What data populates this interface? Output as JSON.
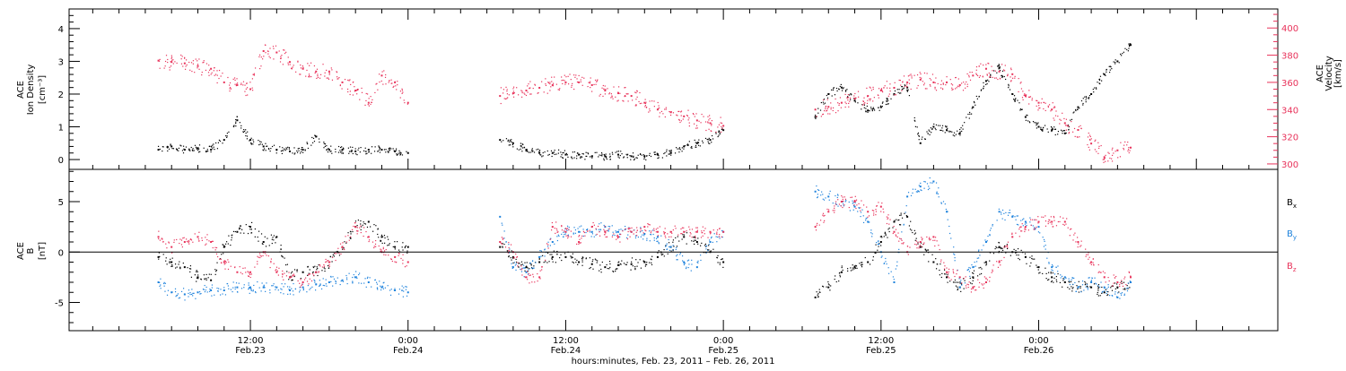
{
  "chart_data": [
    {
      "panel": "ion-density-velocity",
      "type": "scatter",
      "left_axis_label_lines": [
        "ACE",
        "Ion Density",
        "[cm⁻³]"
      ],
      "right_axis_label_lines": [
        "ACE",
        "Velocity",
        "[km/s]"
      ],
      "left_ylim": [
        -0.3,
        4.6
      ],
      "right_ylim": [
        296,
        414
      ],
      "left_ticks": [
        0,
        1,
        2,
        3,
        4
      ],
      "right_ticks": [
        300,
        320,
        340,
        360,
        380,
        400
      ],
      "colors": {
        "density": "#000000",
        "velocity": "#e8325a"
      },
      "data_gaps_hours": [
        [
          24.2,
          31.0
        ],
        [
          48.0,
          54.7
        ]
      ],
      "series": [
        {
          "key": "density",
          "color": "#000000",
          "x": [
            5,
            6,
            7,
            8,
            9,
            10,
            11,
            12,
            13,
            14,
            15,
            16,
            17,
            18,
            19,
            20,
            21,
            22,
            23,
            24,
            31,
            32,
            33,
            34,
            35,
            36,
            37,
            38,
            39,
            40,
            41,
            42,
            43,
            44,
            45,
            46,
            47,
            48,
            55,
            56,
            57,
            58,
            59,
            60,
            61,
            62,
            63,
            64,
            65,
            66,
            67,
            68,
            69,
            70,
            71,
            72,
            73,
            74,
            75,
            76,
            77,
            78,
            79
          ],
          "y": [
            0.3,
            0.4,
            0.3,
            0.35,
            0.3,
            0.6,
            1.2,
            0.6,
            0.4,
            0.3,
            0.25,
            0.3,
            0.7,
            0.3,
            0.3,
            0.25,
            0.3,
            0.3,
            0.25,
            0.2,
            0.6,
            0.5,
            0.3,
            0.2,
            0.2,
            0.15,
            0.15,
            0.1,
            0.1,
            0.15,
            0.1,
            0.1,
            0.15,
            0.2,
            0.4,
            0.5,
            0.6,
            0.9,
            1.3,
            2.0,
            2.2,
            1.8,
            1.5,
            1.6,
            2.0,
            2.2,
            0.5,
            1.0,
            0.9,
            0.8,
            1.6,
            2.4,
            2.8,
            2.0,
            1.3,
            1.0,
            0.9,
            0.8,
            1.6,
            2.0,
            2.6,
            3.0,
            3.5
          ]
        },
        {
          "key": "velocity",
          "color": "#e8325a",
          "x": [
            5,
            6,
            7,
            8,
            9,
            10,
            11,
            12,
            13,
            14,
            15,
            16,
            17,
            18,
            19,
            20,
            21,
            22,
            23,
            24,
            31,
            32,
            33,
            34,
            35,
            36,
            37,
            38,
            39,
            40,
            41,
            42,
            43,
            44,
            45,
            46,
            47,
            48,
            55,
            56,
            57,
            58,
            59,
            60,
            61,
            62,
            63,
            64,
            65,
            66,
            67,
            68,
            69,
            70,
            71,
            72,
            73,
            74,
            75,
            76,
            77,
            78,
            79
          ],
          "y": [
            376,
            375,
            374,
            372,
            370,
            360,
            358,
            355,
            383,
            382,
            375,
            370,
            368,
            368,
            360,
            354,
            345,
            365,
            360,
            345,
            350,
            352,
            354,
            356,
            358,
            360,
            360,
            358,
            354,
            352,
            350,
            345,
            340,
            338,
            335,
            332,
            330,
            328,
            340,
            342,
            345,
            348,
            350,
            354,
            356,
            360,
            362,
            360,
            360,
            358,
            365,
            370,
            368,
            366,
            350,
            345,
            340,
            330,
            325,
            315,
            305,
            310,
            312
          ]
        }
      ]
    },
    {
      "panel": "magnetic-field",
      "type": "scatter",
      "left_axis_label_lines": [
        "ACE",
        "B",
        "[nT]"
      ],
      "ylim": [
        -7.8,
        8.2
      ],
      "yticks": [
        -5,
        0,
        5
      ],
      "zero_line": true,
      "legend": [
        "Bx",
        "By",
        "Bz"
      ],
      "colors": {
        "bx": "#000000",
        "by": "#1e82dc",
        "bz": "#e8325a"
      },
      "series": [
        {
          "key": "bx",
          "color": "#000000",
          "x": [
            5,
            6,
            7,
            8,
            9,
            10,
            11,
            12,
            13,
            14,
            15,
            16,
            17,
            18,
            19,
            20,
            21,
            22,
            23,
            24,
            31,
            32,
            33,
            34,
            35,
            36,
            37,
            38,
            39,
            40,
            41,
            42,
            43,
            44,
            45,
            46,
            47,
            48,
            55,
            56,
            57,
            58,
            59,
            60,
            61,
            62,
            63,
            64,
            65,
            66,
            67,
            68,
            69,
            70,
            71,
            72,
            73,
            74,
            75,
            76,
            77,
            78,
            79
          ],
          "y": [
            -0.5,
            -1.0,
            -1.5,
            -2.5,
            -2.8,
            0.5,
            2.0,
            2.5,
            1.0,
            1.5,
            -2.5,
            -2.0,
            -2.0,
            -1.0,
            0.5,
            2.5,
            3.0,
            1.5,
            0.5,
            0.5,
            0.5,
            -0.5,
            -1.5,
            -1.0,
            -0.5,
            -0.5,
            -1.0,
            -1.2,
            -1.5,
            -1.3,
            -1.2,
            -1.0,
            -0.5,
            0.5,
            1.5,
            1.0,
            0.0,
            -1.0,
            -4.5,
            -3.5,
            -2.0,
            -1.5,
            -1.0,
            1.0,
            3.0,
            3.5,
            0.5,
            -1.0,
            -2.5,
            -3.5,
            -2.5,
            -1.0,
            0.5,
            0.0,
            -0.5,
            -1.5,
            -2.5,
            -3.0,
            -3.5,
            -3.5,
            -4.0,
            -3.5,
            -3.0
          ]
        },
        {
          "key": "by",
          "color": "#1e82dc",
          "x": [
            5,
            6,
            7,
            8,
            9,
            10,
            11,
            12,
            13,
            14,
            15,
            16,
            17,
            18,
            19,
            20,
            21,
            22,
            23,
            24,
            31,
            32,
            33,
            34,
            35,
            36,
            37,
            38,
            39,
            40,
            41,
            42,
            43,
            44,
            45,
            46,
            47,
            48,
            55,
            56,
            57,
            58,
            59,
            60,
            61,
            62,
            63,
            64,
            65,
            66,
            67,
            68,
            69,
            70,
            71,
            72,
            73,
            74,
            75,
            76,
            77,
            78,
            79
          ],
          "y": [
            -3.0,
            -4.0,
            -4.2,
            -4.0,
            -3.8,
            -3.8,
            -3.5,
            -3.5,
            -3.5,
            -3.5,
            -3.8,
            -3.5,
            -3.2,
            -3.0,
            -2.8,
            -2.5,
            -3.0,
            -3.5,
            -3.8,
            -4.0,
            3.5,
            -1.5,
            -2.0,
            -0.5,
            1.0,
            2.0,
            2.0,
            2.0,
            2.5,
            2.0,
            2.0,
            1.8,
            1.5,
            0.5,
            -1.0,
            -1.5,
            1.0,
            2.0,
            6.0,
            5.5,
            5.0,
            4.5,
            3.0,
            0.0,
            -3.0,
            5.5,
            6.5,
            7.0,
            4.0,
            -3.5,
            -1.5,
            1.0,
            4.0,
            3.5,
            3.0,
            2.5,
            -1.5,
            -2.5,
            -3.5,
            -3.0,
            -3.5,
            -4.5,
            -3.0
          ]
        },
        {
          "key": "bz",
          "color": "#e8325a",
          "x": [
            5,
            6,
            7,
            8,
            9,
            10,
            11,
            12,
            13,
            14,
            15,
            16,
            17,
            18,
            19,
            20,
            21,
            22,
            23,
            24,
            31,
            32,
            33,
            34,
            35,
            36,
            37,
            38,
            39,
            40,
            41,
            42,
            43,
            44,
            45,
            46,
            47,
            48,
            55,
            56,
            57,
            58,
            59,
            60,
            61,
            62,
            63,
            64,
            65,
            66,
            67,
            68,
            69,
            70,
            71,
            72,
            73,
            74,
            75,
            76,
            77,
            78,
            79
          ],
          "y": [
            1.5,
            0.5,
            1.0,
            1.5,
            1.0,
            -1.0,
            -2.0,
            -2.0,
            0.0,
            -2.0,
            -2.5,
            -3.0,
            -2.0,
            -1.0,
            0.5,
            2.5,
            1.5,
            0.0,
            -0.5,
            -1.0,
            1.0,
            0.0,
            -2.5,
            -2.5,
            2.5,
            2.0,
            1.0,
            2.5,
            2.0,
            1.5,
            2.0,
            2.5,
            2.0,
            2.0,
            2.0,
            2.0,
            2.0,
            2.0,
            2.5,
            4.0,
            5.0,
            5.0,
            4.0,
            4.5,
            2.0,
            0.0,
            1.0,
            1.5,
            -2.0,
            -2.5,
            -3.5,
            -3.0,
            -1.0,
            1.5,
            2.5,
            3.0,
            3.0,
            3.0,
            1.0,
            -1.0,
            -2.5,
            -3.0,
            -2.5
          ]
        }
      ]
    }
  ],
  "time_axis": {
    "xlim_hours": [
      -1.8,
      90.2
    ],
    "major_ticks": [
      {
        "hour": 12,
        "time": "12:00",
        "day": "Feb.23"
      },
      {
        "hour": 24,
        "time": "0:00",
        "day": "Feb.24"
      },
      {
        "hour": 36,
        "time": "12:00",
        "day": "Feb.24"
      },
      {
        "hour": 48,
        "time": "0:00",
        "day": "Feb.25"
      },
      {
        "hour": 60,
        "time": "12:00",
        "day": "Feb.25"
      },
      {
        "hour": 72,
        "time": "0:00",
        "day": "Feb.26"
      }
    ],
    "title": "hours:minutes, Feb. 23, 2011 – Feb. 26, 2011"
  },
  "legend_labels": {
    "bx": {
      "base": "B",
      "sub": "x"
    },
    "by": {
      "base": "B",
      "sub": "y"
    },
    "bz": {
      "base": "B",
      "sub": "z"
    }
  }
}
